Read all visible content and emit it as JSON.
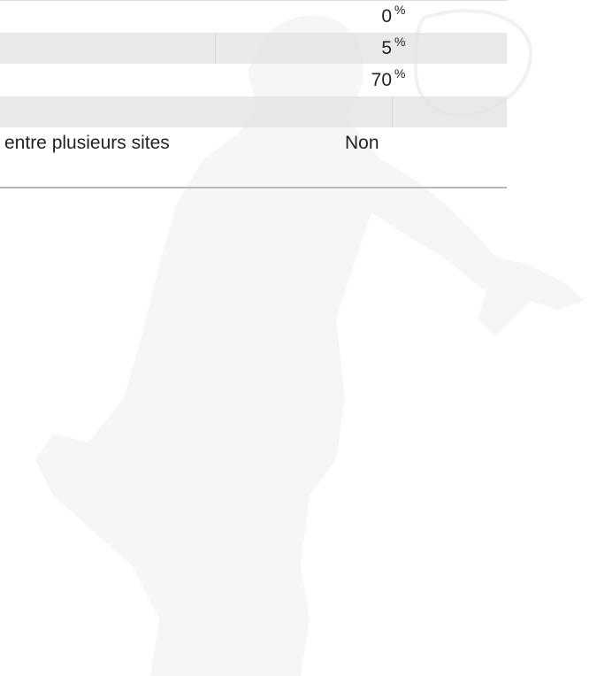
{
  "table": {
    "rows": [
      {
        "value": 0,
        "unit": "%"
      },
      {
        "value": 5,
        "unit": "%"
      },
      {
        "value": 70,
        "unit": "%"
      },
      {
        "label": "entre plusieurs sites",
        "value": "Non"
      }
    ]
  }
}
